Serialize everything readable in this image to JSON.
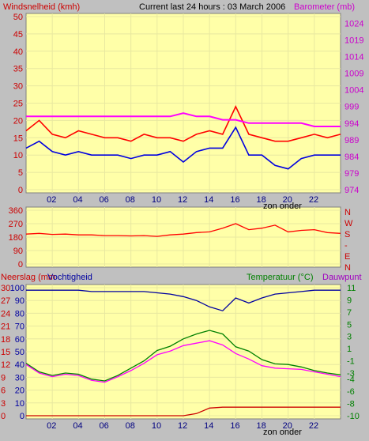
{
  "header": {
    "left_title": "Windsnelheid (kmh)",
    "center_title": "Current last 24 hours : 03 March 2006",
    "right_title": "Barometer (mb)"
  },
  "colors": {
    "panel_bg": "#ffffa8",
    "grid": "#e8e8a0",
    "red": "#ff0000",
    "blue": "#0000e0",
    "magenta": "#ff00ff",
    "darkred": "#cc0000",
    "green": "#008000",
    "navy": "#0000a0",
    "purple": "#a000c0"
  },
  "chart_data": [
    {
      "type": "line",
      "title": "Current last 24 hours : 03 March 2006",
      "ylabel": "Windsnelheid (kmh)",
      "y2label": "Barometer (mb)",
      "ylim": [
        0,
        50
      ],
      "y2lim": [
        974,
        1026
      ],
      "yticks": [
        "0",
        "5",
        "10",
        "15",
        "20",
        "25",
        "30",
        "35",
        "40",
        "45",
        "50"
      ],
      "y2ticks": [
        "974",
        "979",
        "984",
        "989",
        "994",
        "999",
        "1004",
        "1009",
        "1014",
        "1019",
        "1024"
      ],
      "x": [
        0,
        1,
        2,
        3,
        4,
        5,
        6,
        7,
        8,
        9,
        10,
        11,
        12,
        13,
        14,
        15,
        16,
        17,
        18,
        19,
        20,
        21,
        22,
        23,
        24
      ],
      "xticks": [
        "02",
        "04",
        "06",
        "08",
        "10",
        "12",
        "14",
        "16",
        "18",
        "20",
        "22"
      ],
      "xlabel": "zon onder",
      "series": [
        {
          "name": "Windsnelheid (kmh)",
          "axis": "left",
          "values": [
            17,
            20,
            16,
            15,
            17,
            16,
            15,
            15,
            14,
            16,
            15,
            15,
            14,
            16,
            17,
            16,
            24,
            16,
            15,
            14,
            14,
            15,
            16,
            15,
            16
          ]
        },
        {
          "name": "Barometer (mb)",
          "axis": "right",
          "values": [
            996,
            996,
            996,
            996,
            996,
            996,
            996,
            996,
            996,
            996,
            996,
            996,
            997,
            996,
            996,
            995,
            995,
            994,
            994,
            994,
            994,
            994,
            993,
            993,
            993
          ]
        },
        {
          "values": [
            12,
            14,
            11,
            10,
            11,
            10,
            10,
            10,
            9,
            10,
            10,
            11,
            8,
            11,
            12,
            12,
            18,
            10,
            10,
            7,
            6,
            9,
            10,
            10,
            10
          ]
        }
      ]
    },
    {
      "type": "line",
      "yticks": [
        "0",
        "90",
        "180",
        "270",
        "360"
      ],
      "ylim": [
        0,
        360
      ],
      "y2ticks": [
        "N",
        "W",
        "S",
        "-",
        "E",
        "N"
      ],
      "x": [
        0,
        1,
        2,
        3,
        4,
        5,
        6,
        7,
        8,
        9,
        10,
        11,
        12,
        13,
        14,
        15,
        16,
        17,
        18,
        19,
        20,
        21,
        22,
        23,
        24
      ],
      "xticks": [
        "02",
        "04",
        "06",
        "08",
        "10",
        "12",
        "14",
        "16",
        "18",
        "20",
        "22"
      ],
      "series": [
        {
          "values": [
            200,
            205,
            198,
            200,
            195,
            195,
            190,
            190,
            188,
            190,
            185,
            195,
            200,
            210,
            215,
            240,
            270,
            230,
            240,
            260,
            215,
            225,
            230,
            210,
            205
          ]
        }
      ]
    },
    {
      "type": "line",
      "labels": [
        "Neerslag (mm",
        "Vochtigheid",
        "Temperatuur (°C)",
        "Dauwpunt"
      ],
      "ylim": [
        0,
        100
      ],
      "yticks_neerslag": [
        "0",
        "3",
        "6",
        "9",
        "12",
        "15",
        "18",
        "21",
        "24",
        "27",
        "30"
      ],
      "yticks_vochtigheid": [
        "0",
        "10",
        "20",
        "30",
        "40",
        "50",
        "60",
        "70",
        "80",
        "90",
        "100"
      ],
      "y2ticks": [
        "-10",
        "-8",
        "-6",
        "-4",
        "-3",
        "-1",
        "1",
        "3",
        "5",
        "7",
        "9",
        "11"
      ],
      "ytemplim": [
        -10,
        11
      ],
      "x": [
        0,
        1,
        2,
        3,
        4,
        5,
        6,
        7,
        8,
        9,
        10,
        11,
        12,
        13,
        14,
        15,
        16,
        17,
        18,
        19,
        20,
        21,
        22,
        23,
        24
      ],
      "xticks": [
        "02",
        "04",
        "06",
        "08",
        "10",
        "12",
        "14",
        "16",
        "18",
        "20",
        "22"
      ],
      "xlabel": "zon onder",
      "series": [
        {
          "name": "Vochtigheid",
          "axis": "humidity",
          "values": [
            98,
            98,
            98,
            98,
            98,
            97,
            97,
            97,
            97,
            97,
            96,
            95,
            93,
            90,
            85,
            82,
            92,
            88,
            92,
            95,
            96,
            97,
            98,
            98,
            98
          ]
        },
        {
          "name": "Temperatuur (°C)",
          "axis": "temp",
          "values": [
            -1.4,
            -2.8,
            -3.4,
            -3,
            -3.2,
            -4,
            -4.3,
            -3.4,
            -2.2,
            -1,
            0.7,
            1.4,
            2.6,
            3.4,
            4,
            3.4,
            1.3,
            0.6,
            -0.8,
            -1.5,
            -1.6,
            -2,
            -2.6,
            -3,
            -3.3
          ]
        },
        {
          "name": "Dauwpunt",
          "axis": "temp",
          "values": [
            -1.6,
            -3,
            -3.6,
            -3.2,
            -3.4,
            -4.2,
            -4.5,
            -3.6,
            -2.6,
            -1.4,
            0,
            0.6,
            1.5,
            1.9,
            2.3,
            1.6,
            0.2,
            -0.7,
            -1.8,
            -2.2,
            -2.3,
            -2.4,
            -2.8,
            -3.2,
            -3.6
          ]
        },
        {
          "name": "Neerslag (mm",
          "axis": "rain",
          "values": [
            0,
            0,
            0,
            0,
            0,
            0,
            0,
            0,
            0,
            0,
            0,
            0,
            0,
            0.5,
            1.8,
            2,
            2,
            2,
            2,
            2,
            2,
            2,
            2,
            2,
            2
          ]
        }
      ]
    }
  ]
}
